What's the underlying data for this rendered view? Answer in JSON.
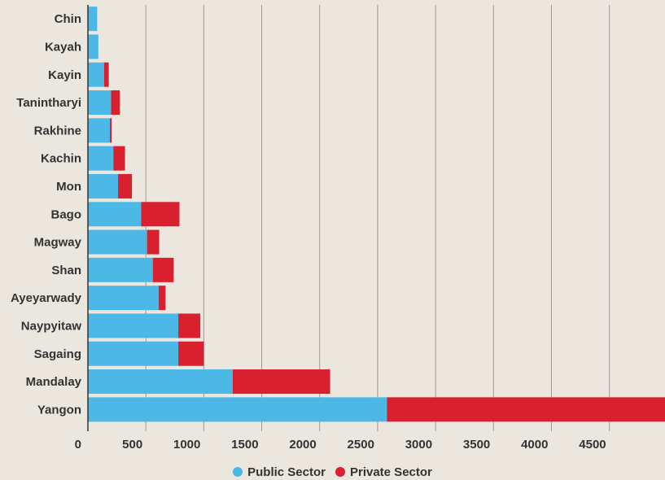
{
  "colors": {
    "background": "#ebe6de",
    "public": "#4bb8e6",
    "private": "#d9202f",
    "grid": "#9e9a93",
    "text": "#333333"
  },
  "legend": {
    "public_label": "Public Sector",
    "private_label": "Private Sector"
  },
  "chart_data": {
    "type": "bar",
    "orientation": "horizontal",
    "stacked": true,
    "categories": [
      "Chin",
      "Kayah",
      "Kayin",
      "Tanintharyi",
      "Rakhine",
      "Kachin",
      "Mon",
      "Bago",
      "Magway",
      "Shan",
      "Ayeyarwady",
      "Naypyitaw",
      "Sagaing",
      "Mandalay",
      "Yangon"
    ],
    "series": [
      {
        "name": "Public Sector",
        "color": "#4bb8e6",
        "values": [
          80,
          90,
          140,
          200,
          190,
          220,
          260,
          460,
          510,
          560,
          610,
          780,
          780,
          1250,
          2580
        ]
      },
      {
        "name": "Private Sector",
        "color": "#d9202f",
        "values": [
          0,
          0,
          40,
          75,
          15,
          100,
          120,
          330,
          105,
          180,
          60,
          190,
          220,
          840,
          2400
        ]
      }
    ],
    "xlim": [
      0,
      4980
    ],
    "xticks": [
      0,
      500,
      1000,
      1500,
      2000,
      2500,
      3000,
      3500,
      4000,
      4500
    ],
    "grid": true,
    "legend_position": "bottom"
  }
}
